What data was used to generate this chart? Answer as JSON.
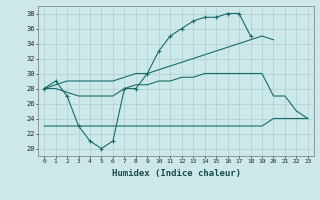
{
  "xlabel": "Humidex (Indice chaleur)",
  "xlim": [
    -0.5,
    23.5
  ],
  "ylim": [
    19,
    39
  ],
  "yticks": [
    20,
    22,
    24,
    26,
    28,
    30,
    32,
    34,
    36,
    38
  ],
  "xticks": [
    0,
    1,
    2,
    3,
    4,
    5,
    6,
    7,
    8,
    9,
    10,
    11,
    12,
    13,
    14,
    15,
    16,
    17,
    18,
    19,
    20,
    21,
    22,
    23
  ],
  "bg_color": "#cce8e8",
  "line_color": "#1a6b6b",
  "grid_color": "#aacfcf",
  "lines": [
    {
      "x": [
        0,
        1,
        2,
        3,
        4,
        5,
        6,
        7,
        8,
        9,
        10,
        11,
        12,
        13,
        14,
        15,
        16,
        17,
        18
      ],
      "y": [
        28,
        29,
        27,
        23,
        21,
        20,
        21,
        28,
        28,
        30,
        33,
        35,
        36,
        37,
        37.5,
        37.5,
        38,
        38,
        35
      ],
      "has_markers": true
    },
    {
      "x": [
        0,
        1,
        2,
        3,
        4,
        5,
        6,
        7,
        8,
        9,
        10,
        11,
        12,
        13,
        14,
        15,
        16,
        17,
        18,
        19,
        20,
        21,
        22,
        23
      ],
      "y": [
        28,
        28.5,
        29,
        29,
        29,
        29,
        29,
        29.5,
        30,
        30,
        30.5,
        31,
        31.5,
        32,
        32.5,
        33,
        33.5,
        34,
        34.5,
        35,
        34.5,
        null,
        null,
        null
      ],
      "has_markers": false
    },
    {
      "x": [
        0,
        1,
        2,
        3,
        4,
        5,
        6,
        7,
        8,
        9,
        10,
        11,
        12,
        13,
        14,
        15,
        16,
        17,
        18,
        19,
        20,
        21,
        22,
        23
      ],
      "y": [
        28,
        28,
        27.5,
        27,
        27,
        27,
        27,
        28,
        28.5,
        28.5,
        29,
        29,
        29.5,
        29.5,
        30,
        30,
        30,
        30,
        30,
        30,
        27,
        27,
        25,
        24
      ],
      "has_markers": false
    },
    {
      "x": [
        0,
        1,
        2,
        3,
        4,
        5,
        6,
        7,
        8,
        9,
        10,
        11,
        12,
        13,
        14,
        15,
        16,
        17,
        18,
        19,
        20,
        21,
        22,
        23
      ],
      "y": [
        23,
        23,
        23,
        23,
        23,
        23,
        23,
        23,
        23,
        23,
        23,
        23,
        23,
        23,
        23,
        23,
        23,
        23,
        23,
        23,
        24,
        24,
        24,
        24
      ],
      "has_markers": false
    }
  ]
}
